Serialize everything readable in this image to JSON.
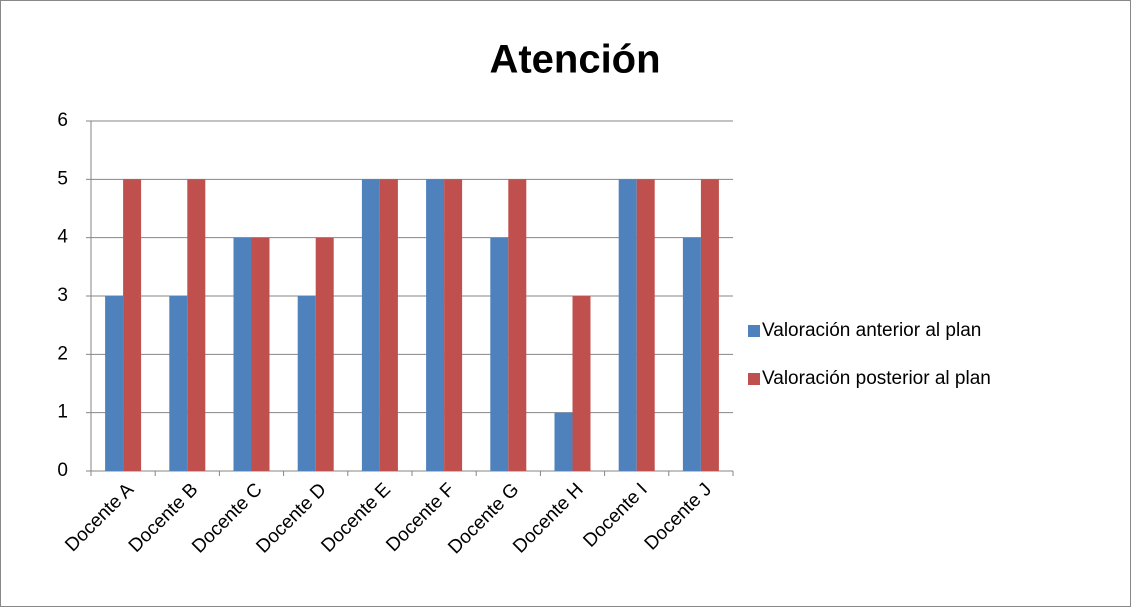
{
  "chart_data": {
    "type": "bar",
    "title": "Atención",
    "categories": [
      "Docente A",
      "Docente B",
      "Docente C",
      "Docente D",
      "Docente E",
      "Docente F",
      "Docente G",
      "Docente H",
      "Docente I",
      "Docente J"
    ],
    "series": [
      {
        "name": "Valoración anterior al plan",
        "color": "#4f81bd",
        "values": [
          3,
          3,
          4,
          3,
          5,
          5,
          4,
          1,
          5,
          4
        ]
      },
      {
        "name": "Valoración posterior al plan",
        "color": "#c0504d",
        "values": [
          5,
          5,
          4,
          4,
          5,
          5,
          5,
          3,
          5,
          5
        ]
      }
    ],
    "ylim": [
      0,
      6
    ],
    "yticks": [
      0,
      1,
      2,
      3,
      4,
      5,
      6
    ],
    "grid": true,
    "legend": "right"
  }
}
